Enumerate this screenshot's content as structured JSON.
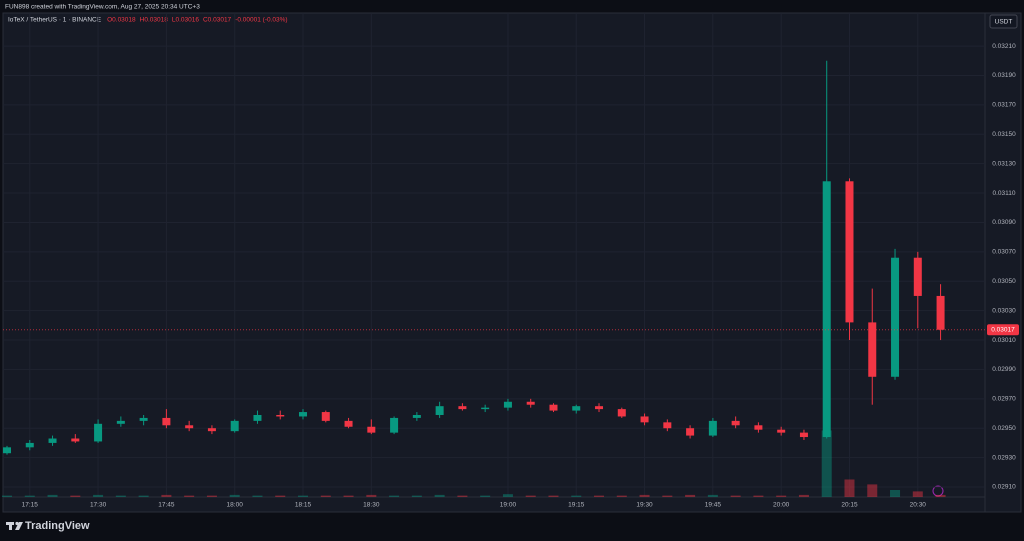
{
  "header": {
    "attribution": "FUN898 created with TradingView.com, Aug 27, 2025 20:34 UTC+3"
  },
  "footer": {
    "logo": "TradingView"
  },
  "chart_data": {
    "type": "candlestick",
    "symbol": "IoTeX / TetherUS · 1 · BINANCE",
    "legend_values": [
      "O0.03018",
      "H0.03018",
      "L0.03016",
      "C0.03017",
      "-0.00001 (-0.03%)"
    ],
    "currency": "USDT",
    "last_price": {
      "value": 0.03017,
      "label": "0.03017"
    },
    "up_color": "#089981",
    "down_color": "#f23645",
    "categories": [
      "17:10",
      "17:15",
      "17:20",
      "17:25",
      "17:30",
      "17:35",
      "17:40",
      "17:45",
      "17:50",
      "17:55",
      "18:00",
      "18:05",
      "18:10",
      "18:15",
      "18:20",
      "18:25",
      "18:30",
      "18:35",
      "18:40",
      "18:45",
      "18:50",
      "18:55",
      "19:00",
      "19:05",
      "19:10",
      "19:15",
      "19:20",
      "19:25",
      "19:30",
      "19:35",
      "19:40",
      "19:45",
      "19:50",
      "19:55",
      "20:00",
      "20:05",
      "20:10",
      "20:15",
      "20:20",
      "20:25",
      "20:30",
      "20:35"
    ],
    "open": [
      0.02933,
      0.02937,
      0.0294,
      0.02943,
      0.02941,
      0.02953,
      0.02955,
      0.02957,
      0.02952,
      0.0295,
      0.02948,
      0.02955,
      0.02959,
      0.02958,
      0.02961,
      0.02955,
      0.02951,
      0.02947,
      0.02957,
      0.02959,
      0.02965,
      0.02963,
      0.02964,
      0.02968,
      0.02966,
      0.02962,
      0.02965,
      0.02963,
      0.02958,
      0.02954,
      0.0295,
      0.02945,
      0.02955,
      0.02952,
      0.02949,
      0.02947,
      0.02944,
      0.03118,
      0.03022,
      0.02985,
      0.03066,
      0.0304
    ],
    "high": [
      0.02938,
      0.02942,
      0.02945,
      0.02946,
      0.02956,
      0.02958,
      0.02959,
      0.02963,
      0.02955,
      0.02952,
      0.02956,
      0.02962,
      0.02962,
      0.02963,
      0.02962,
      0.02957,
      0.02956,
      0.02958,
      0.02961,
      0.02968,
      0.02967,
      0.02966,
      0.0297,
      0.0297,
      0.02967,
      0.02966,
      0.02967,
      0.02964,
      0.0296,
      0.02956,
      0.02952,
      0.02957,
      0.02958,
      0.02954,
      0.02951,
      0.02949,
      0.032,
      0.0312,
      0.03045,
      0.03072,
      0.0307,
      0.03048
    ],
    "low": [
      0.02932,
      0.02935,
      0.02938,
      0.0294,
      0.0294,
      0.02951,
      0.02952,
      0.0295,
      0.02948,
      0.02946,
      0.02947,
      0.02953,
      0.02956,
      0.02956,
      0.02954,
      0.0295,
      0.02946,
      0.02946,
      0.02955,
      0.02957,
      0.02962,
      0.02961,
      0.02962,
      0.02964,
      0.02961,
      0.0296,
      0.02961,
      0.02957,
      0.02952,
      0.02948,
      0.02943,
      0.02944,
      0.0295,
      0.02947,
      0.02945,
      0.02942,
      0.02943,
      0.0301,
      0.02966,
      0.02983,
      0.03018,
      0.0301
    ],
    "close": [
      0.02937,
      0.0294,
      0.02943,
      0.02941,
      0.02953,
      0.02955,
      0.02957,
      0.02952,
      0.0295,
      0.02948,
      0.02955,
      0.02959,
      0.02958,
      0.02961,
      0.02955,
      0.02951,
      0.02947,
      0.02957,
      0.02959,
      0.02965,
      0.02963,
      0.02964,
      0.02968,
      0.02966,
      0.02962,
      0.02965,
      0.02963,
      0.02958,
      0.02954,
      0.0295,
      0.02945,
      0.02955,
      0.02952,
      0.02949,
      0.02947,
      0.02944,
      0.03118,
      0.03022,
      0.02985,
      0.03066,
      0.0304,
      0.03017
    ],
    "volume": [
      2,
      2,
      3,
      2,
      3,
      2,
      2,
      3,
      2,
      2,
      3,
      2,
      2,
      2,
      2,
      2,
      3,
      2,
      2,
      3,
      2,
      2,
      4,
      2,
      2,
      2,
      2,
      2,
      3,
      2,
      3,
      3,
      2,
      2,
      2,
      3,
      95,
      25,
      18,
      10,
      8,
      3
    ],
    "vlim": [
      0,
      100
    ],
    "ylim": [
      0.02893,
      0.032325
    ],
    "yticks": [
      {
        "value": 0.0321,
        "label": "0.03210"
      },
      {
        "value": 0.0319,
        "label": "0.03190"
      },
      {
        "value": 0.0317,
        "label": "0.03170"
      },
      {
        "value": 0.0315,
        "label": "0.03150"
      },
      {
        "value": 0.0313,
        "label": "0.03130"
      },
      {
        "value": 0.0311,
        "label": "0.03110"
      },
      {
        "value": 0.0309,
        "label": "0.03090"
      },
      {
        "value": 0.0307,
        "label": "0.03070"
      },
      {
        "value": 0.0305,
        "label": "0.03050"
      },
      {
        "value": 0.0303,
        "label": "0.03030"
      },
      {
        "value": 0.0301,
        "label": "0.03010"
      },
      {
        "value": 0.0299,
        "label": "0.02990"
      },
      {
        "value": 0.0297,
        "label": "0.02970"
      },
      {
        "value": 0.0295,
        "label": "0.02950"
      },
      {
        "value": 0.0293,
        "label": "0.02930"
      },
      {
        "value": 0.0291,
        "label": "0.02910"
      }
    ],
    "xticks": [
      "17:15",
      "17:30",
      "17:45",
      "18:00",
      "18:15",
      "18:30",
      "19:00",
      "19:15",
      "19:30",
      "19:45",
      "20:00",
      "20:15",
      "20:30"
    ],
    "grid": true
  }
}
